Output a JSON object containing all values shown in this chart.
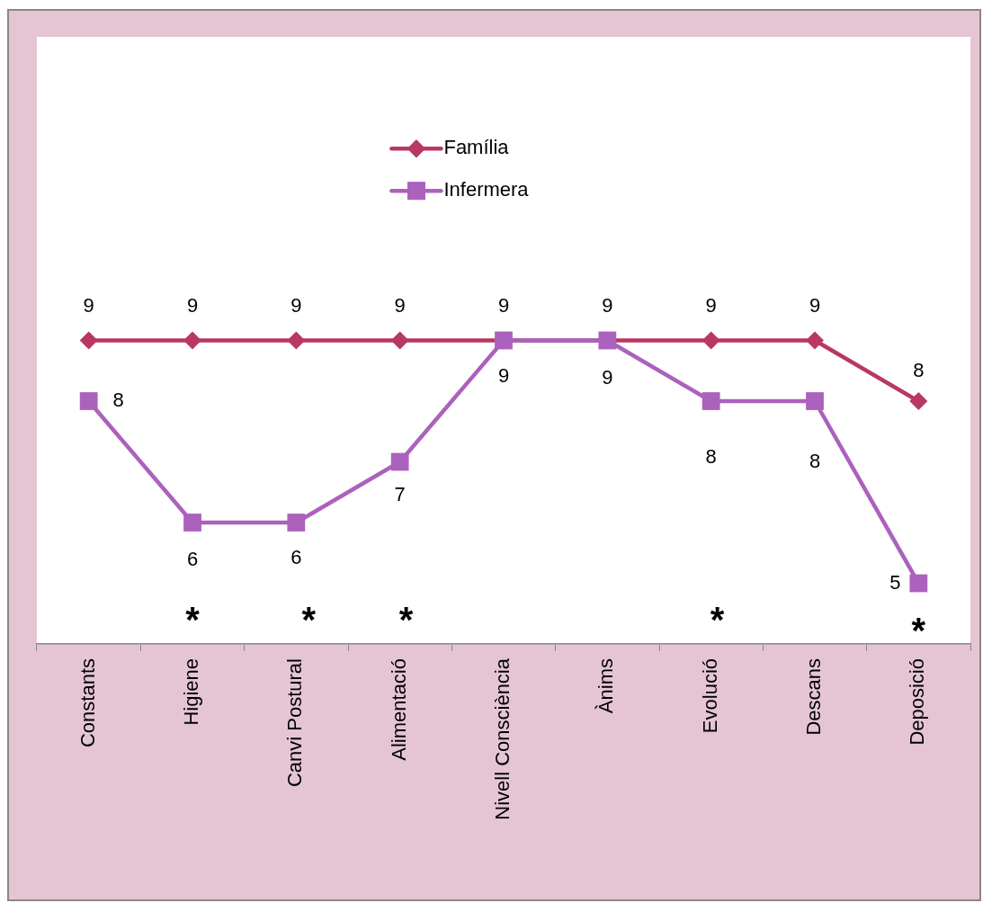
{
  "chart_data": {
    "type": "line",
    "categories": [
      "Constants",
      "Higiene",
      "Canvi Postural",
      "Alimentació",
      "Nivell Consciència",
      "Ànims",
      "Evolució",
      "Descans",
      "Deposició"
    ],
    "series": [
      {
        "name": "Família",
        "color": "#b93862",
        "marker": "diamond",
        "values": [
          9,
          9,
          9,
          9,
          9,
          9,
          9,
          9,
          8
        ]
      },
      {
        "name": "Infermera",
        "color": "#ab62bc",
        "marker": "square",
        "values": [
          8,
          6,
          6,
          7,
          9,
          9,
          8,
          8,
          5
        ]
      }
    ],
    "ylim": [
      4,
      14
    ],
    "tick_labels": "x",
    "data_labels": true,
    "legend": "top",
    "annotations": [
      "*",
      "*",
      "*",
      "*",
      "*"
    ]
  }
}
